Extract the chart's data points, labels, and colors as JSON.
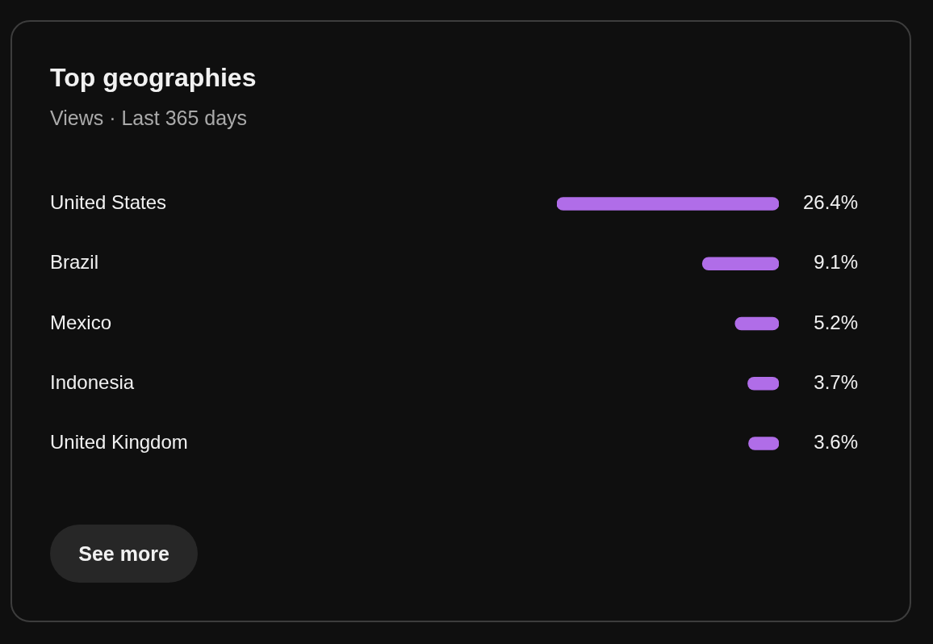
{
  "chart_data": {
    "type": "bar",
    "orientation": "horizontal",
    "title": "Top geographies",
    "subtitle": "Views · Last 365 days",
    "categories": [
      "United States",
      "Brazil",
      "Mexico",
      "Indonesia",
      "United Kingdom"
    ],
    "values": [
      26.4,
      9.1,
      5.2,
      3.7,
      3.6
    ],
    "color": "#b06de8",
    "value_labels": [
      "26.4%",
      "9.1%",
      "5.2%",
      "3.7%",
      "3.6%"
    ],
    "annotations": [
      "See more"
    ]
  }
}
